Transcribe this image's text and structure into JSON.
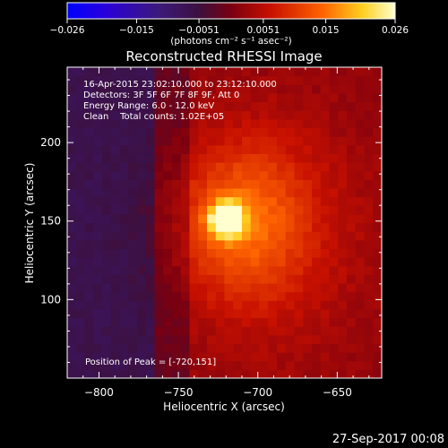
{
  "chart_data": {
    "type": "heatmap",
    "title": "Reconstructed RHESSI Image",
    "xlabel": "Heliocentric X (arcsec)",
    "ylabel": "Heliocentric Y (arcsec)",
    "xlim": [
      -820,
      -622
    ],
    "ylim": [
      50,
      248
    ],
    "x_ticks": [
      -800,
      -750,
      -700,
      -650
    ],
    "y_ticks": [
      100,
      150,
      200
    ],
    "colorbar": {
      "label": "(photons cm⁻² s⁻¹ asec⁻²)",
      "range": [
        -0.026,
        0.026
      ],
      "ticks": [
        -0.026,
        -0.015,
        -0.0051,
        0.0051,
        0.015,
        0.026
      ],
      "tick_labels": [
        "−0.026",
        "−0.015",
        "−0.0051",
        "0.0051",
        "0.015",
        "0.026"
      ]
    },
    "info_lines": [
      "16-Apr-2015 23:02:10.000 to 23:12:10.000",
      "Detectors: 3F 5F 6F 7F 8F 9F, Att 0",
      "Energy Range: 6.0 - 12.0 keV",
      "Clean    Total counts: 1.02E+05"
    ],
    "peak_label": "Position of Peak = [-720,151]",
    "peak_position": [
      -720,
      151
    ],
    "footer_date": "27-Sep-2017 00:08"
  }
}
